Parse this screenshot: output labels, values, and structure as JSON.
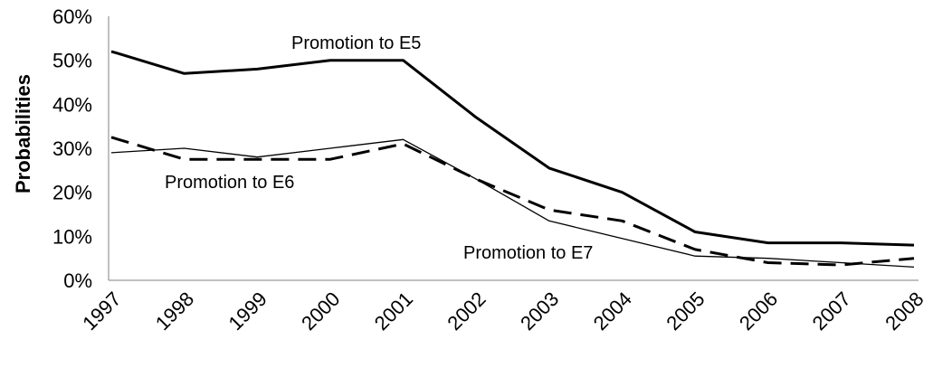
{
  "chart_data": {
    "type": "line",
    "title": "",
    "xlabel": "",
    "ylabel": "Probabilities",
    "categories": [
      "1997",
      "1998",
      "1999",
      "2000",
      "2001",
      "2002",
      "2003",
      "2004",
      "2005",
      "2006",
      "2007",
      "2008"
    ],
    "ylim": [
      0,
      60
    ],
    "yticks": [
      "0%",
      "10%",
      "20%",
      "30%",
      "40%",
      "50%",
      "60%"
    ],
    "grid": false,
    "legend": "none",
    "series": [
      {
        "name": "Promotion to E5",
        "style": "solid-thick",
        "color": "#000000",
        "values": [
          52,
          47,
          48,
          50,
          50,
          37,
          25.5,
          20,
          11,
          8.5,
          8.5,
          8
        ]
      },
      {
        "name": "Promotion to E6",
        "style": "solid-thin",
        "color": "#000000",
        "values": [
          29,
          30,
          28,
          30,
          32,
          23,
          13.5,
          9.5,
          5.5,
          5,
          4,
          3
        ]
      },
      {
        "name": "Promotion to E7",
        "style": "dashed",
        "color": "#000000",
        "values": [
          32.5,
          27.5,
          27.5,
          27.5,
          31,
          23,
          16,
          13.5,
          7,
          4,
          3.5,
          5
        ]
      }
    ],
    "annotations": [
      "Promotion to E5",
      "Promotion to E6",
      "Promotion to E7"
    ]
  }
}
